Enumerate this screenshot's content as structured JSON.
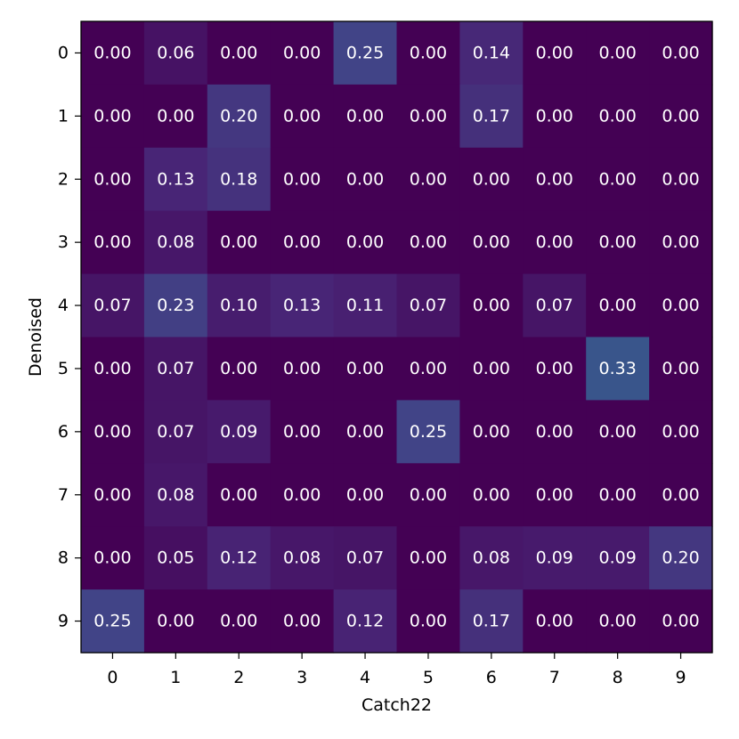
{
  "chart_data": {
    "type": "heatmap",
    "title": "",
    "xlabel": "Catch22",
    "ylabel": "Denoised",
    "x_categories": [
      "0",
      "1",
      "2",
      "3",
      "4",
      "5",
      "6",
      "7",
      "8",
      "9"
    ],
    "y_categories": [
      "0",
      "1",
      "2",
      "3",
      "4",
      "5",
      "6",
      "7",
      "8",
      "9"
    ],
    "values": [
      [
        0.0,
        0.06,
        0.0,
        0.0,
        0.25,
        0.0,
        0.14,
        0.0,
        0.0,
        0.0
      ],
      [
        0.0,
        0.0,
        0.2,
        0.0,
        0.0,
        0.0,
        0.17,
        0.0,
        0.0,
        0.0
      ],
      [
        0.0,
        0.13,
        0.18,
        0.0,
        0.0,
        0.0,
        0.0,
        0.0,
        0.0,
        0.0
      ],
      [
        0.0,
        0.08,
        0.0,
        0.0,
        0.0,
        0.0,
        0.0,
        0.0,
        0.0,
        0.0
      ],
      [
        0.07,
        0.23,
        0.1,
        0.13,
        0.11,
        0.07,
        0.0,
        0.07,
        0.0,
        0.0
      ],
      [
        0.0,
        0.07,
        0.0,
        0.0,
        0.0,
        0.0,
        0.0,
        0.0,
        0.33,
        0.0
      ],
      [
        0.0,
        0.07,
        0.09,
        0.0,
        0.0,
        0.25,
        0.0,
        0.0,
        0.0,
        0.0
      ],
      [
        0.0,
        0.08,
        0.0,
        0.0,
        0.0,
        0.0,
        0.0,
        0.0,
        0.0,
        0.0
      ],
      [
        0.0,
        0.05,
        0.12,
        0.08,
        0.07,
        0.0,
        0.08,
        0.09,
        0.09,
        0.2
      ],
      [
        0.25,
        0.0,
        0.0,
        0.0,
        0.12,
        0.0,
        0.17,
        0.0,
        0.0,
        0.0
      ]
    ],
    "value_format": "0.00",
    "colormap": "viridis",
    "vmin": 0,
    "vmax": 1,
    "cell_text_color": "#ffffff",
    "grid": false
  }
}
